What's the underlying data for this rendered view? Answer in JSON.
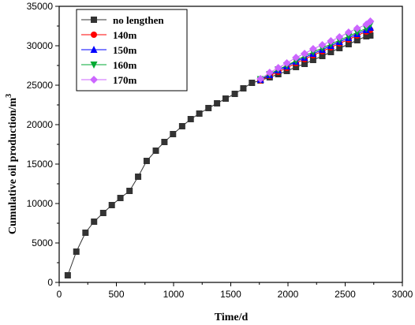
{
  "chart_data": {
    "type": "line",
    "xlabel": "Time/d",
    "ylabel_main": "Cumulative oil production/m",
    "ylabel_sup": "3",
    "xlim": [
      0,
      3000
    ],
    "ylim": [
      0,
      35000
    ],
    "xticks": [
      "0",
      "500",
      "1000",
      "1500",
      "2000",
      "2500",
      "3000"
    ],
    "yticks": [
      "0",
      "5000",
      "10000",
      "15000",
      "20000",
      "25000",
      "30000",
      "35000"
    ],
    "legend_placement": "top-left",
    "grid": false,
    "series": [
      {
        "name": "no lengthen",
        "color": "#333333",
        "marker": "square",
        "x": [
          75,
          150,
          230,
          305,
          385,
          460,
          535,
          615,
          690,
          765,
          845,
          920,
          995,
          1075,
          1150,
          1225,
          1305,
          1380,
          1455,
          1535,
          1610,
          1685,
          1760,
          1840,
          1915,
          1990,
          2070,
          2145,
          2220,
          2300,
          2375,
          2450,
          2530,
          2605,
          2685,
          2720
        ],
        "y": [
          900,
          3900,
          6300,
          7700,
          8800,
          9800,
          10700,
          11600,
          13400,
          15400,
          16700,
          17800,
          18800,
          19800,
          20700,
          21400,
          22100,
          22700,
          23300,
          23900,
          24600,
          25300,
          25600,
          26000,
          26400,
          26800,
          27300,
          27700,
          28200,
          28700,
          29200,
          29700,
          30200,
          30700,
          31200,
          31300
        ]
      },
      {
        "name": "140m",
        "color": "#ff0000",
        "marker": "circle",
        "x": [
          1760,
          1840,
          1915,
          1990,
          2070,
          2145,
          2220,
          2300,
          2375,
          2450,
          2530,
          2605,
          2685,
          2720
        ],
        "y": [
          25600,
          26200,
          26700,
          27200,
          27800,
          28300,
          28800,
          29300,
          29800,
          30300,
          30800,
          31300,
          31800,
          32000
        ]
      },
      {
        "name": "150m",
        "color": "#0000ff",
        "marker": "triangle-up",
        "x": [
          1760,
          1840,
          1915,
          1990,
          2070,
          2145,
          2220,
          2300,
          2375,
          2450,
          2530,
          2605,
          2685,
          2720
        ],
        "y": [
          25700,
          26300,
          26900,
          27400,
          28000,
          28500,
          29000,
          29500,
          30000,
          30500,
          31000,
          31500,
          32000,
          32300
        ]
      },
      {
        "name": "160m",
        "color": "#00aa33",
        "marker": "triangle-down",
        "x": [
          1760,
          1840,
          1915,
          1990,
          2070,
          2145,
          2220,
          2300,
          2375,
          2450,
          2530,
          2605,
          2685,
          2720
        ],
        "y": [
          25750,
          26400,
          27000,
          27500,
          28100,
          28700,
          29200,
          29700,
          30200,
          30700,
          31200,
          31700,
          32200,
          32700
        ]
      },
      {
        "name": "170m",
        "color": "#cc66ff",
        "marker": "diamond",
        "x": [
          1760,
          1840,
          1915,
          1990,
          2070,
          2145,
          2220,
          2300,
          2375,
          2450,
          2530,
          2605,
          2685,
          2720
        ],
        "y": [
          25800,
          26600,
          27200,
          27800,
          28500,
          29000,
          29600,
          30100,
          30600,
          31100,
          31700,
          32200,
          32700,
          33100
        ]
      }
    ]
  }
}
